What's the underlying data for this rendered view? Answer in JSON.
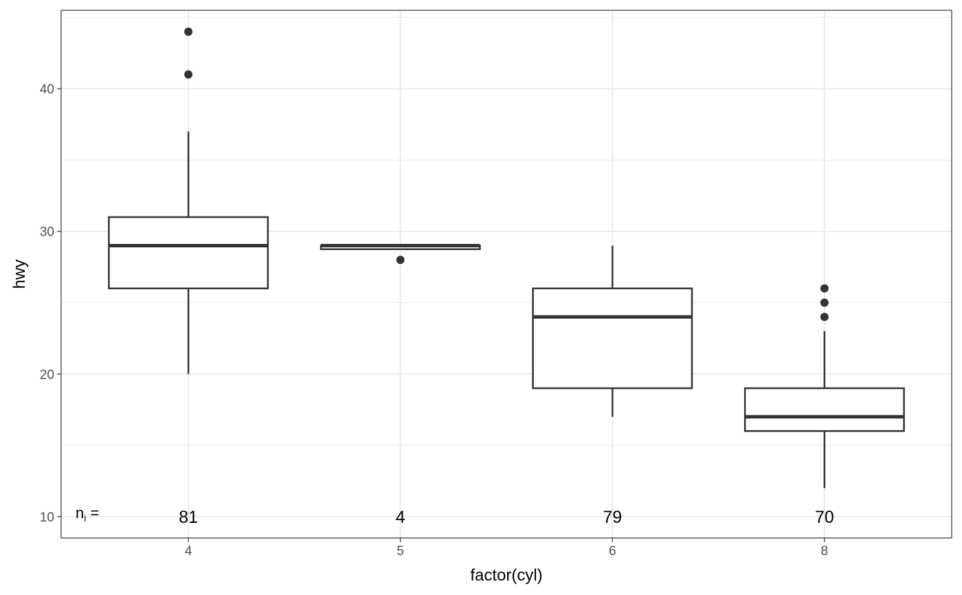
{
  "chart_data": {
    "type": "boxplot",
    "xlabel": "factor(cyl)",
    "ylabel": "hwy",
    "ylim": [
      8.5,
      45.5
    ],
    "yticks": [
      10,
      20,
      30,
      40
    ],
    "categories": [
      "4",
      "5",
      "6",
      "8"
    ],
    "boxes": [
      {
        "category": "4",
        "whisker_low": 20,
        "q1": 26,
        "median": 29,
        "q3": 31,
        "whisker_high": 37,
        "outliers": [
          41,
          44
        ],
        "n": "81"
      },
      {
        "category": "5",
        "whisker_low": 28.75,
        "q1": 28.75,
        "median": 29,
        "q3": 29,
        "whisker_high": 29,
        "outliers": [
          28
        ],
        "n": "4"
      },
      {
        "category": "6",
        "whisker_low": 17,
        "q1": 19,
        "median": 24,
        "q3": 26,
        "whisker_high": 29,
        "outliers": [],
        "n": "79"
      },
      {
        "category": "8",
        "whisker_low": 12,
        "q1": 16,
        "median": 17,
        "q3": 19,
        "whisker_high": 23,
        "outliers": [
          24,
          25,
          26
        ],
        "n": "70"
      }
    ],
    "count_prefix": {
      "main": "n",
      "sub": "i",
      "suffix": " ="
    },
    "grid": true,
    "legend": "none"
  }
}
